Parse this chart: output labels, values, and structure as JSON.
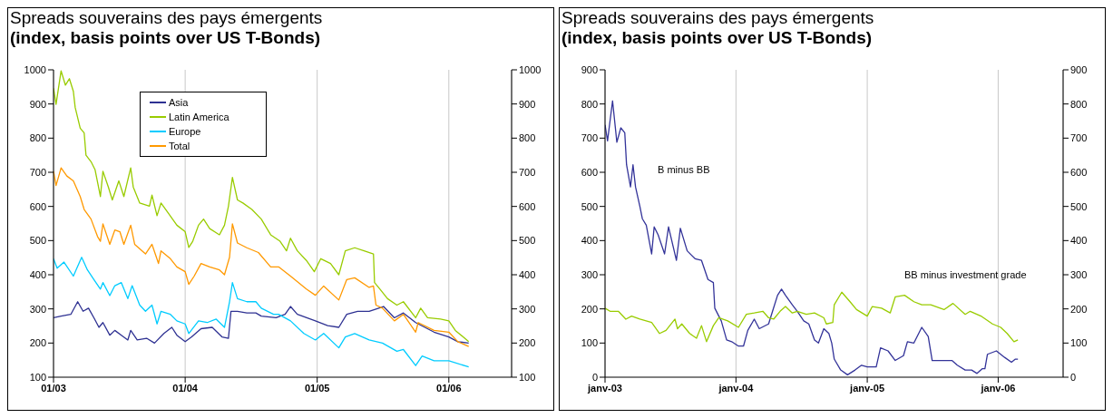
{
  "chart_data": [
    {
      "type": "line",
      "title": "Spreads souverains des pays émergents",
      "subtitle": "(index, basis points over US T-Bonds)",
      "xlim": [
        "2003-01-01",
        "2006-06-24"
      ],
      "xticks": [
        {
          "value": "2003-01-01",
          "label": "01/03"
        },
        {
          "value": "2004-01-01",
          "label": "01/04"
        },
        {
          "value": "2005-01-01",
          "label": "01/05"
        },
        {
          "value": "2006-01-01",
          "label": "01/06"
        }
      ],
      "ylim": [
        100,
        1000
      ],
      "yticks": [
        100,
        200,
        300,
        400,
        500,
        600,
        700,
        800,
        900,
        1000
      ],
      "y2lim": [
        100,
        1000
      ],
      "y2ticks": [
        100,
        200,
        300,
        400,
        500,
        600,
        700,
        800,
        900,
        1000
      ],
      "grid": "x",
      "legend": "top",
      "series": [
        {
          "name": "Asia",
          "color": "#2e3192",
          "x": [
            "2003-01-01",
            "2003-01-22",
            "2003-02-18",
            "2003-03-09",
            "2003-03-24",
            "2003-04-08",
            "2003-04-23",
            "2003-05-07",
            "2003-05-18",
            "2003-06-06",
            "2003-06-20",
            "2003-07-08",
            "2003-07-26",
            "2003-08-03",
            "2003-08-21",
            "2003-09-16",
            "2003-10-08",
            "2003-11-03",
            "2003-11-25",
            "2003-12-09",
            "2004-01-01",
            "2004-01-19",
            "2004-02-14",
            "2004-03-16",
            "2004-04-12",
            "2004-04-30",
            "2004-05-07",
            "2004-05-25",
            "2004-06-20",
            "2004-07-15",
            "2004-07-30",
            "2004-09-09",
            "2004-10-04",
            "2004-10-19",
            "2004-11-07",
            "2004-12-27",
            "2005-01-30",
            "2005-03-02",
            "2005-03-24",
            "2005-04-23",
            "2005-05-25",
            "2005-07-04",
            "2005-08-03",
            "2005-08-28",
            "2005-10-01",
            "2005-11-21",
            "2006-01-01",
            "2006-01-26",
            "2006-02-25"
          ],
          "values": [
            274,
            279,
            284,
            321,
            293,
            302,
            274,
            246,
            260,
            223,
            237,
            223,
            209,
            237,
            209,
            214,
            200,
            228,
            246,
            223,
            204,
            218,
            242,
            246,
            218,
            214,
            293,
            293,
            288,
            288,
            279,
            274,
            284,
            307,
            284,
            265,
            251,
            246,
            284,
            293,
            293,
            307,
            274,
            288,
            260,
            232,
            218,
            204,
            200
          ]
        },
        {
          "name": "Latin America",
          "color": "#99cc00",
          "x": [
            "2003-01-01",
            "2003-01-08",
            "2003-01-22",
            "2003-02-03",
            "2003-02-14",
            "2003-02-25",
            "2003-03-02",
            "2003-03-16",
            "2003-03-27",
            "2003-04-01",
            "2003-04-15",
            "2003-04-26",
            "2003-05-11",
            "2003-05-18",
            "2003-06-02",
            "2003-06-13",
            "2003-07-01",
            "2003-07-15",
            "2003-08-03",
            "2003-08-10",
            "2003-08-28",
            "2003-09-24",
            "2003-10-01",
            "2003-10-15",
            "2003-10-26",
            "2003-11-14",
            "2003-12-09",
            "2004-01-01",
            "2004-01-11",
            "2004-01-22",
            "2004-02-07",
            "2004-02-21",
            "2004-03-09",
            "2004-04-05",
            "2004-04-19",
            "2004-04-30",
            "2004-05-11",
            "2004-05-25",
            "2004-06-09",
            "2004-07-04",
            "2004-07-30",
            "2004-08-25",
            "2004-09-20",
            "2004-10-08",
            "2004-10-19",
            "2004-11-07",
            "2004-12-02",
            "2004-12-24",
            "2005-01-11",
            "2005-02-07",
            "2005-03-02",
            "2005-03-20",
            "2005-04-15",
            "2005-05-11",
            "2005-06-06",
            "2005-06-09",
            "2005-06-24",
            "2005-07-15",
            "2005-08-10",
            "2005-08-28",
            "2005-10-01",
            "2005-10-15",
            "2005-11-03",
            "2005-12-09",
            "2006-01-01",
            "2006-01-19",
            "2006-02-14",
            "2006-02-25"
          ],
          "values": [
            946,
            899,
            997,
            955,
            974,
            937,
            890,
            829,
            815,
            750,
            731,
            708,
            629,
            703,
            657,
            619,
            675,
            629,
            713,
            657,
            610,
            601,
            633,
            573,
            610,
            582,
            545,
            526,
            480,
            498,
            545,
            563,
            535,
            517,
            545,
            601,
            685,
            619,
            610,
            591,
            563,
            517,
            498,
            470,
            507,
            470,
            442,
            409,
            447,
            433,
            400,
            470,
            479,
            470,
            461,
            377,
            358,
            330,
            311,
            321,
            274,
            302,
            274,
            270,
            265,
            237,
            214,
            204
          ]
        },
        {
          "name": "Europe",
          "color": "#00ccff",
          "x": [
            "2003-01-01",
            "2003-01-11",
            "2003-01-30",
            "2003-02-25",
            "2003-03-20",
            "2003-04-05",
            "2003-04-23",
            "2003-05-11",
            "2003-05-18",
            "2003-06-06",
            "2003-06-20",
            "2003-07-08",
            "2003-07-26",
            "2003-08-07",
            "2003-08-28",
            "2003-09-13",
            "2003-10-01",
            "2003-10-15",
            "2003-10-26",
            "2003-11-21",
            "2003-12-09",
            "2004-01-01",
            "2004-01-11",
            "2004-02-07",
            "2004-03-02",
            "2004-03-27",
            "2004-04-19",
            "2004-05-03",
            "2004-05-11",
            "2004-05-25",
            "2004-06-20",
            "2004-07-15",
            "2004-07-30",
            "2004-09-02",
            "2004-09-16",
            "2004-10-19",
            "2004-11-25",
            "2004-12-27",
            "2005-01-19",
            "2005-03-02",
            "2005-03-20",
            "2005-04-15",
            "2005-05-25",
            "2005-07-01",
            "2005-08-10",
            "2005-08-28",
            "2005-10-01",
            "2005-10-19",
            "2005-11-21",
            "2006-01-01",
            "2006-02-25"
          ],
          "values": [
            447,
            419,
            437,
            396,
            451,
            414,
            386,
            358,
            377,
            339,
            368,
            377,
            330,
            368,
            311,
            293,
            311,
            256,
            293,
            284,
            265,
            256,
            228,
            265,
            260,
            270,
            246,
            321,
            377,
            330,
            321,
            321,
            302,
            284,
            284,
            265,
            228,
            209,
            228,
            186,
            218,
            228,
            209,
            200,
            176,
            181,
            134,
            162,
            148,
            148,
            130
          ]
        },
        {
          "name": "Total",
          "color": "#ff9900",
          "x": [
            "2003-01-01",
            "2003-01-08",
            "2003-01-22",
            "2003-02-07",
            "2003-02-25",
            "2003-03-16",
            "2003-03-27",
            "2003-04-15",
            "2003-05-03",
            "2003-05-11",
            "2003-05-18",
            "2003-06-06",
            "2003-06-20",
            "2003-07-04",
            "2003-07-15",
            "2003-08-03",
            "2003-08-14",
            "2003-09-13",
            "2003-10-01",
            "2003-10-19",
            "2003-10-26",
            "2003-11-21",
            "2003-12-09",
            "2004-01-01",
            "2004-01-11",
            "2004-01-26",
            "2004-02-14",
            "2004-03-09",
            "2004-04-05",
            "2004-04-19",
            "2004-05-03",
            "2004-05-11",
            "2004-05-25",
            "2004-06-20",
            "2004-07-22",
            "2004-08-25",
            "2004-09-16",
            "2004-10-19",
            "2004-12-02",
            "2004-12-27",
            "2005-01-19",
            "2005-03-02",
            "2005-03-24",
            "2005-04-15",
            "2005-05-25",
            "2005-06-06",
            "2005-06-13",
            "2005-07-01",
            "2005-08-03",
            "2005-08-28",
            "2005-10-01",
            "2005-10-08",
            "2005-11-21",
            "2006-01-01",
            "2006-01-26",
            "2006-02-25"
          ],
          "values": [
            703,
            661,
            713,
            689,
            675,
            629,
            591,
            563,
            512,
            498,
            549,
            489,
            531,
            526,
            489,
            545,
            489,
            461,
            489,
            433,
            470,
            447,
            423,
            409,
            372,
            396,
            433,
            423,
            414,
            400,
            451,
            549,
            493,
            479,
            465,
            423,
            423,
            396,
            358,
            340,
            367,
            326,
            386,
            391,
            363,
            367,
            311,
            302,
            265,
            284,
            232,
            260,
            237,
            232,
            204,
            190
          ]
        }
      ]
    },
    {
      "type": "line",
      "title": "Spreads souverains des pays émergents",
      "subtitle": "(index, basis points over US T-Bonds)",
      "xlim": [
        "2003-01-01",
        "2006-07-01"
      ],
      "xticks": [
        {
          "value": "2003-01-01",
          "label": "janv-03"
        },
        {
          "value": "2004-01-01",
          "label": "janv-04"
        },
        {
          "value": "2005-01-01",
          "label": "janv-05"
        },
        {
          "value": "2006-01-01",
          "label": "janv-06"
        }
      ],
      "ylim": [
        0,
        900
      ],
      "yticks": [
        0,
        100,
        200,
        300,
        400,
        500,
        600,
        700,
        800,
        900
      ],
      "y2lim": [
        0,
        900
      ],
      "y2ticks": [
        0,
        100,
        200,
        300,
        400,
        500,
        600,
        700,
        800,
        900
      ],
      "grid": "x",
      "series": [
        {
          "name": "B minus BB",
          "color": "#333399",
          "x": [
            "2003-01-01",
            "2003-01-08",
            "2003-01-22",
            "2003-02-03",
            "2003-02-14",
            "2003-02-25",
            "2003-03-02",
            "2003-03-13",
            "2003-03-20",
            "2003-03-27",
            "2003-04-08",
            "2003-04-15",
            "2003-04-26",
            "2003-05-11",
            "2003-05-18",
            "2003-05-29",
            "2003-06-16",
            "2003-06-27",
            "2003-07-19",
            "2003-07-30",
            "2003-08-18",
            "2003-09-09",
            "2003-09-27",
            "2003-10-15",
            "2003-10-30",
            "2003-11-03",
            "2003-11-21",
            "2003-12-06",
            "2003-12-20",
            "2004-01-08",
            "2004-01-22",
            "2004-02-03",
            "2004-02-21",
            "2004-03-06",
            "2004-04-01",
            "2004-04-12",
            "2004-04-26",
            "2004-05-07",
            "2004-05-18",
            "2004-06-06",
            "2004-06-20",
            "2004-07-08",
            "2004-07-22",
            "2004-08-07",
            "2004-08-18",
            "2004-09-02",
            "2004-09-16",
            "2004-09-24",
            "2004-10-01",
            "2004-10-19",
            "2004-11-07",
            "2004-11-28",
            "2004-12-16",
            "2005-01-01",
            "2005-01-26",
            "2005-02-07",
            "2005-02-28",
            "2005-03-20",
            "2005-04-12",
            "2005-04-23",
            "2005-05-11",
            "2005-06-02",
            "2005-06-20",
            "2005-07-01",
            "2005-07-30",
            "2005-08-25",
            "2005-09-09",
            "2005-10-01",
            "2005-10-19",
            "2005-11-03",
            "2005-11-18",
            "2005-11-25",
            "2005-12-02",
            "2005-12-27",
            "2006-01-19",
            "2006-02-07",
            "2006-02-18",
            "2006-02-25"
          ],
          "values": [
            739,
            692,
            809,
            688,
            730,
            716,
            622,
            557,
            622,
            557,
            501,
            464,
            445,
            361,
            440,
            417,
            361,
            440,
            342,
            436,
            370,
            347,
            342,
            286,
            277,
            202,
            165,
            109,
            104,
            91,
            91,
            137,
            170,
            142,
            156,
            193,
            240,
            258,
            240,
            212,
            193,
            165,
            156,
            109,
            100,
            142,
            128,
            100,
            53,
            21,
            7,
            21,
            35,
            30,
            30,
            86,
            77,
            49,
            63,
            104,
            100,
            146,
            119,
            49,
            49,
            49,
            35,
            21,
            21,
            11,
            25,
            25,
            67,
            77,
            58,
            44,
            53,
            53
          ]
        },
        {
          "name": "BB minus investment grade",
          "color": "#99cc00",
          "x": [
            "2003-01-01",
            "2003-01-15",
            "2003-02-07",
            "2003-02-28",
            "2003-03-16",
            "2003-04-08",
            "2003-05-11",
            "2003-06-02",
            "2003-06-20",
            "2003-07-15",
            "2003-07-22",
            "2003-08-03",
            "2003-08-25",
            "2003-09-13",
            "2003-09-27",
            "2003-10-11",
            "2003-10-30",
            "2003-11-14",
            "2003-12-09",
            "2004-01-08",
            "2004-01-30",
            "2004-02-21",
            "2004-03-16",
            "2004-04-01",
            "2004-04-15",
            "2004-05-03",
            "2004-05-18",
            "2004-06-06",
            "2004-06-20",
            "2004-07-15",
            "2004-08-07",
            "2004-09-02",
            "2004-09-09",
            "2004-09-27",
            "2004-10-01",
            "2004-10-22",
            "2004-11-14",
            "2004-12-02",
            "2005-01-01",
            "2005-01-15",
            "2005-02-10",
            "2005-03-06",
            "2005-03-20",
            "2005-04-15",
            "2005-05-11",
            "2005-06-02",
            "2005-06-27",
            "2005-08-03",
            "2005-08-28",
            "2005-10-01",
            "2005-10-15",
            "2005-11-14",
            "2005-12-16",
            "2006-01-08",
            "2006-01-26",
            "2006-02-14",
            "2006-02-25"
          ],
          "values": [
            202,
            193,
            193,
            170,
            179,
            170,
            160,
            128,
            137,
            170,
            142,
            156,
            128,
            114,
            151,
            104,
            151,
            174,
            165,
            146,
            184,
            188,
            193,
            174,
            170,
            193,
            207,
            188,
            193,
            184,
            188,
            174,
            156,
            160,
            212,
            249,
            221,
            198,
            179,
            207,
            202,
            188,
            235,
            240,
            221,
            212,
            212,
            198,
            216,
            184,
            193,
            179,
            156,
            146,
            128,
            104,
            109
          ]
        }
      ]
    }
  ]
}
